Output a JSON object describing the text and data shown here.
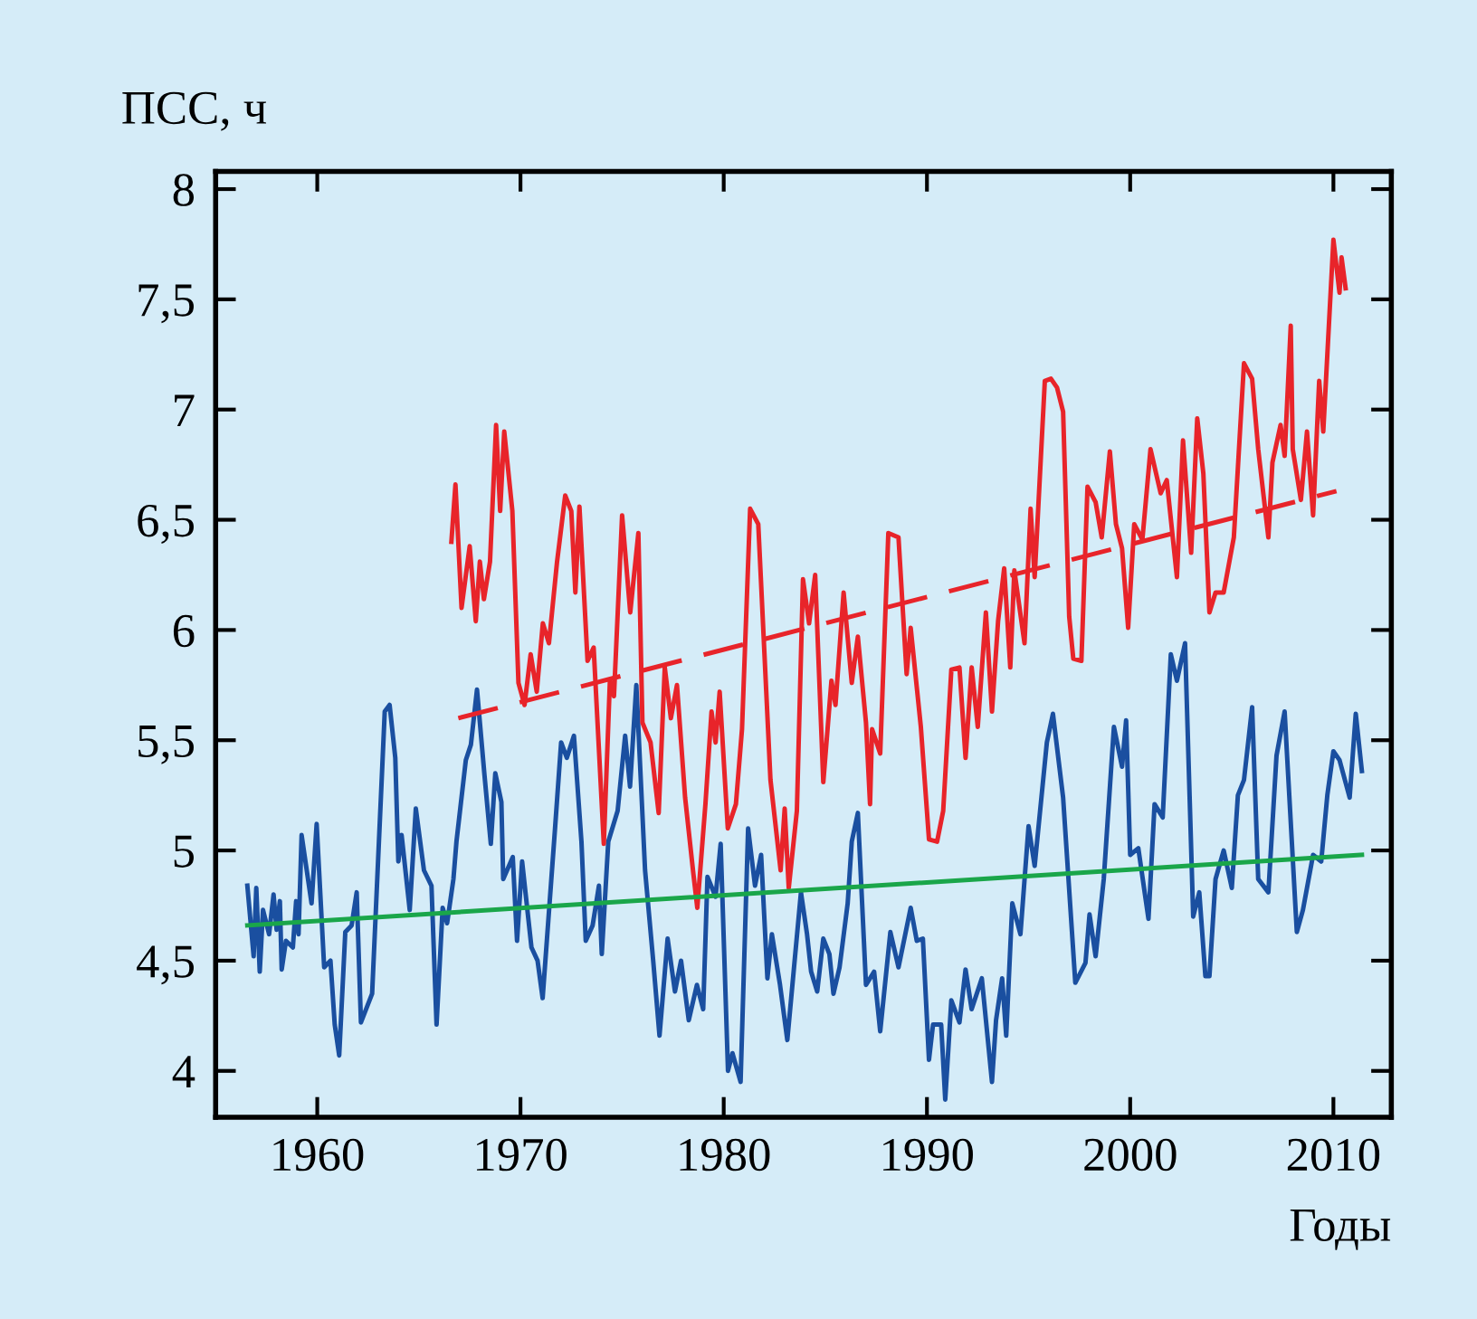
{
  "chart_data": {
    "type": "line",
    "ylabel": "ПСС, ч",
    "xlabel": "Годы",
    "xlim": [
      1955,
      2012.85
    ],
    "ylim": [
      3.79,
      8.08
    ],
    "xticks": [
      1960,
      1970,
      1980,
      1990,
      2000,
      2010
    ],
    "yticks": [
      4,
      {
        "value": 4.5,
        "label": "4,5"
      },
      5,
      {
        "value": 5.5,
        "label": "5,5"
      },
      6,
      {
        "value": 6.5,
        "label": "6,5"
      },
      7,
      {
        "value": 7.5,
        "label": "7,5"
      },
      8
    ],
    "grid": false,
    "legend": false,
    "marker": "none",
    "line_style": "solid",
    "series": [
      {
        "color": "#1a4fa0",
        "x": [
          1956.56,
          1956.87,
          1957.0,
          1957.17,
          1957.33,
          1957.63,
          1957.85,
          1958.0,
          1958.16,
          1958.25,
          1958.46,
          1958.8,
          1958.96,
          1959.08,
          1959.23,
          1959.72,
          1959.97,
          1960.34,
          1960.65,
          1960.86,
          1961.08,
          1961.38,
          1961.69,
          1961.94,
          1962.15,
          1962.7,
          1963.32,
          1963.56,
          1963.84,
          1963.99,
          1964.15,
          1964.55,
          1964.85,
          1965.25,
          1965.62,
          1965.87,
          1966.17,
          1966.39,
          1966.7,
          1966.85,
          1967.31,
          1967.56,
          1967.86,
          1968.23,
          1968.54,
          1968.76,
          1969.06,
          1969.15,
          1969.62,
          1969.83,
          1970.08,
          1970.54,
          1970.84,
          1971.09,
          1971.7,
          1972.0,
          1972.28,
          1972.63,
          1973.0,
          1973.21,
          1973.55,
          1973.86,
          1974.0,
          1974.32,
          1974.78,
          1975.15,
          1975.39,
          1975.7,
          1976.13,
          1976.53,
          1976.84,
          1977.24,
          1977.6,
          1977.9,
          1978.28,
          1978.68,
          1978.99,
          1979.2,
          1979.6,
          1979.85,
          1980.21,
          1980.43,
          1980.83,
          1981.2,
          1981.54,
          1981.84,
          1982.15,
          1982.37,
          1982.77,
          1983.13,
          1983.44,
          1983.8,
          1984.1,
          1984.3,
          1984.6,
          1984.9,
          1985.2,
          1985.4,
          1985.7,
          1986.1,
          1986.3,
          1986.6,
          1987.0,
          1987.4,
          1987.7,
          1988.2,
          1988.6,
          1989.2,
          1989.5,
          1989.8,
          1990.1,
          1990.3,
          1990.7,
          1990.9,
          1991.2,
          1991.6,
          1991.9,
          1992.2,
          1992.7,
          1993.2,
          1993.4,
          1993.7,
          1993.9,
          1994.2,
          1994.6,
          1995.0,
          1995.3,
          1995.9,
          1996.2,
          1996.7,
          1997.3,
          1997.8,
          1998.0,
          1998.3,
          1998.7,
          1999.2,
          1999.6,
          1999.8,
          2000.0,
          2000.4,
          2000.9,
          2001.2,
          2001.6,
          2002.0,
          2002.3,
          2002.7,
          2003.1,
          2003.4,
          2003.7,
          2003.9,
          2004.2,
          2004.6,
          2005.0,
          2005.3,
          2005.6,
          2006.0,
          2006.3,
          2006.8,
          2007.2,
          2007.6,
          2008.2,
          2008.5,
          2009.0,
          2009.4,
          2009.7,
          2010.0,
          2010.3,
          2010.8,
          2011.1,
          2011.4
        ],
        "values": [
          4.84,
          4.52,
          4.83,
          4.45,
          4.73,
          4.62,
          4.8,
          4.64,
          4.77,
          4.46,
          4.59,
          4.56,
          4.77,
          4.62,
          5.07,
          4.76,
          5.12,
          4.47,
          4.5,
          4.21,
          4.07,
          4.63,
          4.66,
          4.81,
          4.22,
          4.35,
          5.63,
          5.66,
          5.42,
          4.95,
          5.07,
          4.73,
          5.19,
          4.91,
          4.84,
          4.21,
          4.74,
          4.67,
          4.87,
          5.04,
          5.41,
          5.48,
          5.73,
          5.34,
          5.03,
          5.35,
          5.22,
          4.87,
          4.97,
          4.59,
          4.95,
          4.56,
          4.5,
          4.33,
          5.1,
          5.49,
          5.42,
          5.52,
          5.04,
          4.59,
          4.66,
          4.84,
          4.53,
          5.04,
          5.18,
          5.52,
          5.29,
          5.75,
          4.91,
          4.5,
          4.16,
          4.6,
          4.36,
          4.5,
          4.23,
          4.39,
          4.28,
          4.88,
          4.79,
          5.03,
          4.0,
          4.08,
          3.95,
          5.1,
          4.84,
          4.98,
          4.42,
          4.62,
          4.39,
          4.14,
          4.45,
          4.81,
          4.62,
          4.45,
          4.36,
          4.6,
          4.53,
          4.35,
          4.47,
          4.76,
          5.04,
          5.17,
          4.39,
          4.45,
          4.18,
          4.63,
          4.47,
          4.74,
          4.59,
          4.6,
          4.05,
          4.21,
          4.21,
          3.87,
          4.32,
          4.22,
          4.46,
          4.28,
          4.42,
          3.95,
          4.23,
          4.42,
          4.16,
          4.76,
          4.62,
          5.11,
          4.93,
          5.49,
          5.62,
          5.24,
          4.4,
          4.49,
          4.71,
          4.52,
          4.87,
          5.56,
          5.38,
          5.59,
          4.98,
          5.01,
          4.69,
          5.21,
          5.15,
          5.89,
          5.77,
          5.94,
          4.7,
          4.81,
          4.43,
          4.43,
          4.87,
          5.0,
          4.83,
          5.25,
          5.32,
          5.65,
          4.87,
          4.81,
          5.43,
          5.63,
          4.63,
          4.73,
          4.98,
          4.95,
          5.25,
          5.45,
          5.41,
          5.24,
          5.62,
          5.36
        ]
      },
      {
        "color": "#e8242a",
        "x": [
          1966.6,
          1966.8,
          1967.1,
          1967.5,
          1967.8,
          1968.0,
          1968.2,
          1968.5,
          1968.8,
          1969.0,
          1969.2,
          1969.6,
          1969.9,
          1970.2,
          1970.5,
          1970.8,
          1971.1,
          1971.4,
          1971.8,
          1972.2,
          1972.5,
          1972.7,
          1972.9,
          1973.3,
          1973.6,
          1974.1,
          1974.4,
          1974.6,
          1975.0,
          1975.4,
          1975.8,
          1976.0,
          1976.4,
          1976.8,
          1977.1,
          1977.4,
          1977.7,
          1978.1,
          1978.5,
          1978.7,
          1979.1,
          1979.4,
          1979.6,
          1979.8,
          1980.2,
          1980.6,
          1980.9,
          1981.3,
          1981.7,
          1982.3,
          1982.8,
          1983.0,
          1983.2,
          1983.6,
          1983.9,
          1984.2,
          1984.5,
          1984.9,
          1985.3,
          1985.5,
          1985.9,
          1986.3,
          1986.6,
          1987.0,
          1987.2,
          1987.3,
          1987.7,
          1988.1,
          1988.6,
          1989.0,
          1989.2,
          1989.7,
          1990.1,
          1990.5,
          1990.8,
          1991.2,
          1991.6,
          1991.9,
          1992.2,
          1992.5,
          1992.9,
          1993.2,
          1993.5,
          1993.8,
          1994.1,
          1994.3,
          1994.8,
          1995.1,
          1995.3,
          1995.8,
          1996.1,
          1996.4,
          1996.7,
          1997.0,
          1997.2,
          1997.6,
          1997.9,
          1998.3,
          1998.6,
          1999.0,
          1999.3,
          1999.6,
          1999.9,
          2000.2,
          2000.6,
          2001.0,
          2001.5,
          2001.8,
          2002.3,
          2002.6,
          2003.0,
          2003.3,
          2003.6,
          2003.9,
          2004.2,
          2004.6,
          2005.1,
          2005.6,
          2006.0,
          2006.3,
          2006.8,
          2007.0,
          2007.4,
          2007.6,
          2007.9,
          2008.0,
          2008.4,
          2008.7,
          2009.0,
          2009.3,
          2009.5,
          2010.0,
          2010.3,
          2010.4,
          2010.6
        ],
        "values": [
          6.4,
          6.66,
          6.1,
          6.38,
          6.04,
          6.31,
          6.14,
          6.31,
          6.93,
          6.54,
          6.9,
          6.54,
          5.76,
          5.66,
          5.89,
          5.72,
          6.03,
          5.94,
          6.31,
          6.61,
          6.54,
          6.17,
          6.56,
          5.86,
          5.92,
          5.03,
          5.77,
          5.7,
          6.52,
          6.08,
          6.44,
          5.58,
          5.49,
          5.17,
          5.83,
          5.6,
          5.75,
          5.24,
          4.9,
          4.74,
          5.21,
          5.63,
          5.49,
          5.72,
          5.1,
          5.21,
          5.55,
          6.55,
          6.48,
          5.32,
          4.91,
          5.19,
          4.83,
          5.18,
          6.23,
          6.03,
          6.25,
          5.31,
          5.77,
          5.66,
          6.17,
          5.76,
          5.97,
          5.58,
          5.21,
          5.55,
          5.44,
          6.44,
          6.42,
          5.8,
          6.01,
          5.56,
          5.05,
          5.04,
          5.18,
          5.82,
          5.83,
          5.42,
          5.83,
          5.56,
          6.08,
          5.63,
          6.04,
          6.28,
          5.83,
          6.27,
          5.94,
          6.55,
          6.24,
          7.13,
          7.14,
          7.1,
          6.99,
          6.06,
          5.87,
          5.86,
          6.65,
          6.58,
          6.42,
          6.81,
          6.48,
          6.37,
          6.01,
          6.48,
          6.41,
          6.82,
          6.62,
          6.68,
          6.24,
          6.86,
          6.35,
          6.96,
          6.71,
          6.08,
          6.17,
          6.17,
          6.42,
          7.21,
          7.14,
          6.82,
          6.42,
          6.76,
          6.93,
          6.79,
          7.38,
          6.82,
          6.59,
          6.9,
          6.52,
          7.13,
          6.9,
          7.77,
          7.53,
          7.69,
          7.55
        ]
      },
      {
        "color": "#1aa64a",
        "x": [
          1956.56,
          2011.4
        ],
        "values": [
          4.66,
          4.98
        ]
      },
      {
        "color": "#e8242a",
        "line_style": "dashed",
        "x": [
          1966.94,
          2010.15
        ],
        "values": [
          5.6,
          6.63
        ]
      }
    ]
  }
}
